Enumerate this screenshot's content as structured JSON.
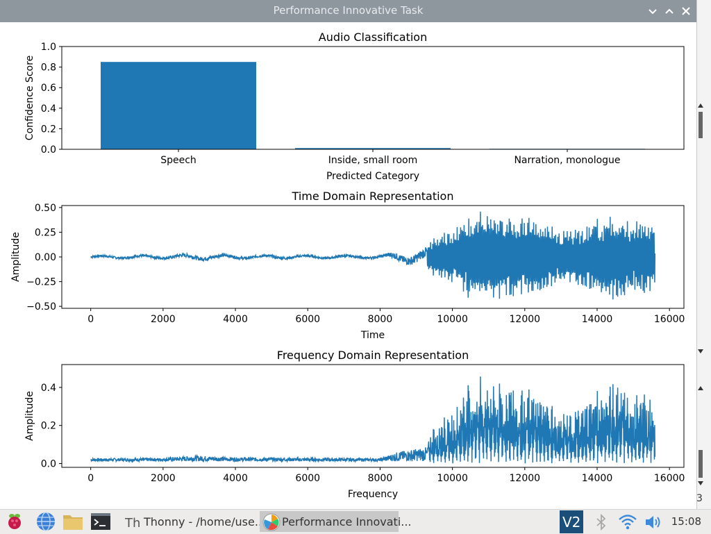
{
  "window": {
    "title": "Performance Innovative Task",
    "controls": {
      "minimize": "⌄",
      "maximize": "⌃",
      "close": "✕"
    }
  },
  "background_text": "3",
  "chart_data": [
    {
      "type": "bar",
      "title": "Audio Classification",
      "xlabel": "Predicted Category",
      "ylabel": "Confidence Score",
      "categories": [
        "Speech",
        "Inside, small room",
        "Narration, monologue"
      ],
      "values": [
        0.85,
        0.012,
        0.005
      ],
      "ylim": [
        0,
        1.0
      ],
      "yticks": [
        0.0,
        0.2,
        0.4,
        0.6,
        0.8,
        1.0
      ],
      "ytick_labels": [
        "0.0",
        "0.2",
        "0.4",
        "0.6",
        "0.8",
        "1.0"
      ],
      "color": "#1f77b4",
      "grid": false
    },
    {
      "type": "line",
      "title": "Time Domain Representation",
      "xlabel": "Time",
      "ylabel": "Amplitude",
      "xlim": [
        -800,
        16400
      ],
      "ylim": [
        -0.52,
        0.52
      ],
      "xticks": [
        0,
        2000,
        4000,
        6000,
        8000,
        10000,
        12000,
        14000,
        16000
      ],
      "xtick_labels": [
        "0",
        "2000",
        "4000",
        "6000",
        "8000",
        "10000",
        "12000",
        "14000",
        "16000"
      ],
      "yticks": [
        -0.5,
        -0.25,
        0.0,
        0.25,
        0.5
      ],
      "ytick_labels": [
        "−0.50",
        "−0.25",
        "0.00",
        "0.25",
        "0.50"
      ],
      "color": "#1f77b4",
      "x_range": [
        0,
        15600
      ],
      "y_envelope": [
        {
          "x": 0,
          "amp": 0.03
        },
        {
          "x": 2000,
          "amp": 0.035
        },
        {
          "x": 2900,
          "amp": 0.06
        },
        {
          "x": 4000,
          "amp": 0.04
        },
        {
          "x": 6000,
          "amp": 0.035
        },
        {
          "x": 8000,
          "amp": 0.03
        },
        {
          "x": 8500,
          "amp": 0.1
        },
        {
          "x": 9300,
          "amp": 0.15
        },
        {
          "x": 9600,
          "amp": 0.25
        },
        {
          "x": 10000,
          "amp": 0.28
        },
        {
          "x": 10700,
          "amp": 0.5
        },
        {
          "x": 11300,
          "amp": 0.47
        },
        {
          "x": 11800,
          "amp": 0.43
        },
        {
          "x": 12500,
          "amp": 0.38
        },
        {
          "x": 13000,
          "amp": 0.27
        },
        {
          "x": 13500,
          "amp": 0.3
        },
        {
          "x": 14400,
          "amp": 0.47
        },
        {
          "x": 15000,
          "amp": 0.4
        },
        {
          "x": 15600,
          "amp": 0.4
        }
      ],
      "grid": false
    },
    {
      "type": "line",
      "title": "Frequency Domain Representation",
      "xlabel": "Frequency",
      "ylabel": "Amplitude",
      "xlim": [
        -800,
        16400
      ],
      "ylim": [
        -0.02,
        0.52
      ],
      "xticks": [
        0,
        2000,
        4000,
        6000,
        8000,
        10000,
        12000,
        14000,
        16000
      ],
      "xtick_labels": [
        "0",
        "2000",
        "4000",
        "6000",
        "8000",
        "10000",
        "12000",
        "14000",
        "16000"
      ],
      "yticks": [
        0.0,
        0.2,
        0.4
      ],
      "ytick_labels": [
        "0.0",
        "0.2",
        "0.4"
      ],
      "color": "#1f77b4",
      "x_range": [
        0,
        15600
      ],
      "y_envelope": [
        {
          "x": 0,
          "amp": 0.03
        },
        {
          "x": 2000,
          "amp": 0.035
        },
        {
          "x": 2900,
          "amp": 0.06
        },
        {
          "x": 4000,
          "amp": 0.04
        },
        {
          "x": 6000,
          "amp": 0.035
        },
        {
          "x": 8000,
          "amp": 0.03
        },
        {
          "x": 8500,
          "amp": 0.1
        },
        {
          "x": 9300,
          "amp": 0.15
        },
        {
          "x": 9600,
          "amp": 0.25
        },
        {
          "x": 10000,
          "amp": 0.28
        },
        {
          "x": 10700,
          "amp": 0.5
        },
        {
          "x": 11300,
          "amp": 0.47
        },
        {
          "x": 11800,
          "amp": 0.43
        },
        {
          "x": 12500,
          "amp": 0.38
        },
        {
          "x": 13000,
          "amp": 0.27
        },
        {
          "x": 13500,
          "amp": 0.3
        },
        {
          "x": 14400,
          "amp": 0.47
        },
        {
          "x": 15000,
          "amp": 0.4
        },
        {
          "x": 15600,
          "amp": 0.4
        }
      ],
      "grid": false
    }
  ],
  "taskbar": {
    "icons": [
      "raspberry-menu-icon",
      "web-browser-icon",
      "file-manager-icon",
      "terminal-icon"
    ],
    "tasks": [
      {
        "label": "Thonny  -  /home/use...",
        "icon": "thonny-icon",
        "active": false
      },
      {
        "label": "Performance Innovati...",
        "icon": "matplotlib-icon",
        "active": true
      }
    ],
    "tray": [
      "vnc-icon",
      "bluetooth-icon",
      "wifi-icon",
      "volume-icon"
    ],
    "clock": "15:08",
    "accent": "#1f77b4"
  }
}
